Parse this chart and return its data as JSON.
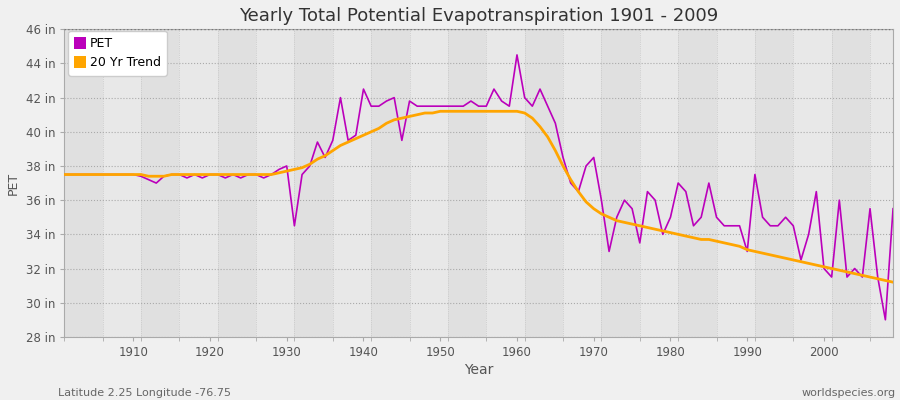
{
  "title": "Yearly Total Potential Evapotranspiration 1901 - 2009",
  "xlabel": "Year",
  "ylabel": "PET",
  "footnote_left": "Latitude 2.25 Longitude -76.75",
  "footnote_right": "worldspecies.org",
  "ylim": [
    28,
    46
  ],
  "yticks": [
    28,
    30,
    32,
    34,
    36,
    38,
    40,
    42,
    44,
    46
  ],
  "ytick_labels": [
    "28 in",
    "30 in",
    "32 in",
    "34 in",
    "36 in",
    "38 in",
    "40 in",
    "42 in",
    "44 in",
    "46 in"
  ],
  "xlim": [
    1901,
    2009
  ],
  "xticks": [
    1910,
    1920,
    1930,
    1940,
    1950,
    1960,
    1970,
    1980,
    1990,
    2000
  ],
  "pet_color": "#BB00BB",
  "trend_color": "#FFA500",
  "bg_color": "#F0F0F0",
  "plot_bg_color_light": "#E8E8E8",
  "plot_bg_color_dark": "#DCDCDC",
  "legend_pet": "PET",
  "legend_trend": "20 Yr Trend",
  "years": [
    1901,
    1902,
    1903,
    1904,
    1905,
    1906,
    1907,
    1908,
    1909,
    1910,
    1911,
    1912,
    1913,
    1914,
    1915,
    1916,
    1917,
    1918,
    1919,
    1920,
    1921,
    1922,
    1923,
    1924,
    1925,
    1926,
    1927,
    1928,
    1929,
    1930,
    1931,
    1932,
    1933,
    1934,
    1935,
    1936,
    1937,
    1938,
    1939,
    1940,
    1941,
    1942,
    1943,
    1944,
    1945,
    1946,
    1947,
    1948,
    1949,
    1950,
    1951,
    1952,
    1953,
    1954,
    1955,
    1956,
    1957,
    1958,
    1959,
    1960,
    1961,
    1962,
    1963,
    1964,
    1965,
    1966,
    1967,
    1968,
    1969,
    1970,
    1971,
    1972,
    1973,
    1974,
    1975,
    1976,
    1977,
    1978,
    1979,
    1980,
    1981,
    1982,
    1983,
    1984,
    1985,
    1986,
    1987,
    1988,
    1989,
    1990,
    1991,
    1992,
    1993,
    1994,
    1995,
    1996,
    1997,
    1998,
    1999,
    2000,
    2001,
    2002,
    2003,
    2004,
    2005,
    2006,
    2007,
    2008,
    2009
  ],
  "pet_values": [
    37.5,
    37.5,
    37.5,
    37.5,
    37.5,
    37.5,
    37.5,
    37.5,
    37.5,
    37.5,
    37.4,
    37.2,
    37.0,
    37.4,
    37.5,
    37.5,
    37.3,
    37.5,
    37.3,
    37.5,
    37.5,
    37.3,
    37.5,
    37.3,
    37.5,
    37.5,
    37.3,
    37.5,
    37.8,
    38.0,
    34.5,
    37.5,
    38.0,
    39.4,
    38.5,
    39.5,
    42.0,
    39.5,
    39.8,
    42.5,
    41.5,
    41.5,
    41.8,
    42.0,
    39.5,
    41.8,
    41.5,
    41.5,
    41.5,
    41.5,
    41.5,
    41.5,
    41.5,
    41.8,
    41.5,
    41.5,
    42.5,
    41.8,
    41.5,
    44.5,
    42.0,
    41.5,
    42.5,
    41.5,
    40.5,
    38.5,
    37.0,
    36.5,
    38.0,
    38.5,
    36.0,
    33.0,
    35.0,
    36.0,
    35.5,
    33.5,
    36.5,
    36.0,
    34.0,
    35.0,
    37.0,
    36.5,
    34.5,
    35.0,
    37.0,
    35.0,
    34.5,
    34.5,
    34.5,
    33.0,
    37.5,
    35.0,
    34.5,
    34.5,
    35.0,
    34.5,
    32.5,
    34.0,
    36.5,
    32.0,
    31.5,
    36.0,
    31.5,
    32.0,
    31.5,
    35.5,
    31.5,
    29.0,
    35.5
  ],
  "trend_values": [
    37.5,
    37.5,
    37.5,
    37.5,
    37.5,
    37.5,
    37.5,
    37.5,
    37.5,
    37.5,
    37.5,
    37.4,
    37.4,
    37.4,
    37.5,
    37.5,
    37.5,
    37.5,
    37.5,
    37.5,
    37.5,
    37.5,
    37.5,
    37.5,
    37.5,
    37.5,
    37.5,
    37.5,
    37.6,
    37.7,
    37.8,
    37.9,
    38.1,
    38.4,
    38.6,
    38.9,
    39.2,
    39.4,
    39.6,
    39.8,
    40.0,
    40.2,
    40.5,
    40.7,
    40.8,
    40.9,
    41.0,
    41.1,
    41.1,
    41.2,
    41.2,
    41.2,
    41.2,
    41.2,
    41.2,
    41.2,
    41.2,
    41.2,
    41.2,
    41.2,
    41.1,
    40.8,
    40.3,
    39.7,
    38.9,
    38.0,
    37.2,
    36.5,
    35.9,
    35.5,
    35.2,
    35.0,
    34.8,
    34.7,
    34.6,
    34.5,
    34.4,
    34.3,
    34.2,
    34.1,
    34.0,
    33.9,
    33.8,
    33.7,
    33.7,
    33.6,
    33.5,
    33.4,
    33.3,
    33.1,
    33.0,
    32.9,
    32.8,
    32.7,
    32.6,
    32.5,
    32.4,
    32.3,
    32.2,
    32.1,
    32.0,
    31.9,
    31.8,
    31.7,
    31.6,
    31.5,
    31.4,
    31.3,
    31.2
  ]
}
